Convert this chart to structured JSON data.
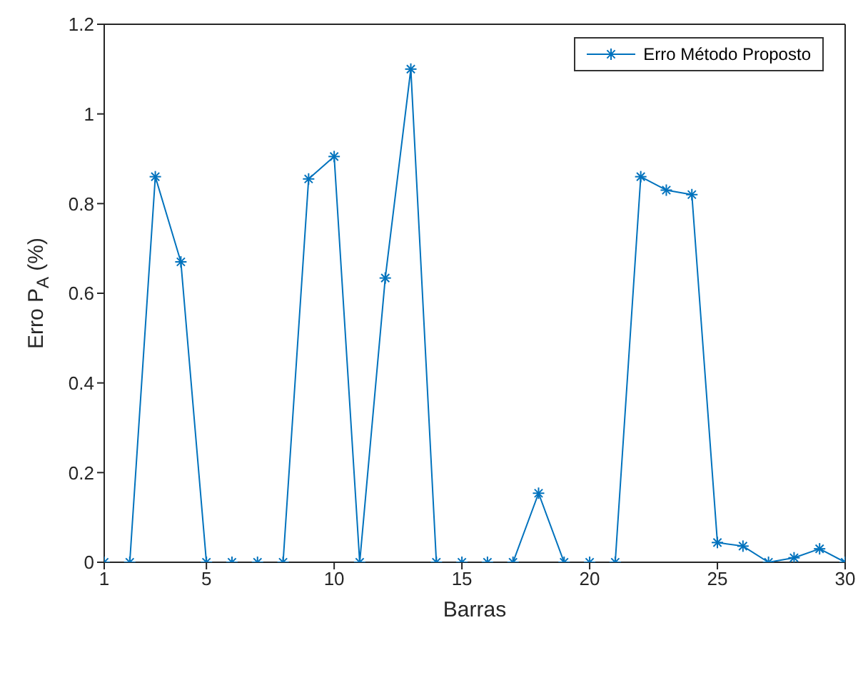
{
  "chart_data": {
    "type": "line",
    "xlabel": "Barras",
    "ylabel": "Erro P$_{A}$ (%)",
    "x": [
      1,
      2,
      3,
      4,
      5,
      6,
      7,
      8,
      9,
      10,
      11,
      12,
      13,
      14,
      15,
      16,
      17,
      18,
      19,
      20,
      21,
      22,
      23,
      24,
      25,
      26,
      27,
      28,
      29,
      30
    ],
    "series": [
      {
        "name": "Erro Método Proposto",
        "color": "#0072bd",
        "values": [
          0,
          0,
          0.86,
          0.67,
          0,
          0,
          0,
          0,
          0.855,
          0.905,
          0,
          0.634,
          1.1,
          0,
          0,
          0,
          0,
          0.154,
          0,
          0,
          0,
          0.86,
          0.83,
          0.82,
          0.044,
          0.036,
          0,
          0.01,
          0.03,
          0
        ]
      }
    ],
    "xlim": [
      1,
      30
    ],
    "xticks": [
      1,
      5,
      10,
      15,
      20,
      25,
      30
    ],
    "ylim": [
      0,
      1.2
    ],
    "yticks": [
      0,
      0.2,
      0.4,
      0.6,
      0.8,
      1,
      1.2
    ],
    "grid": false,
    "legend": "top right",
    "marker": "cross",
    "line_style": "solid"
  }
}
